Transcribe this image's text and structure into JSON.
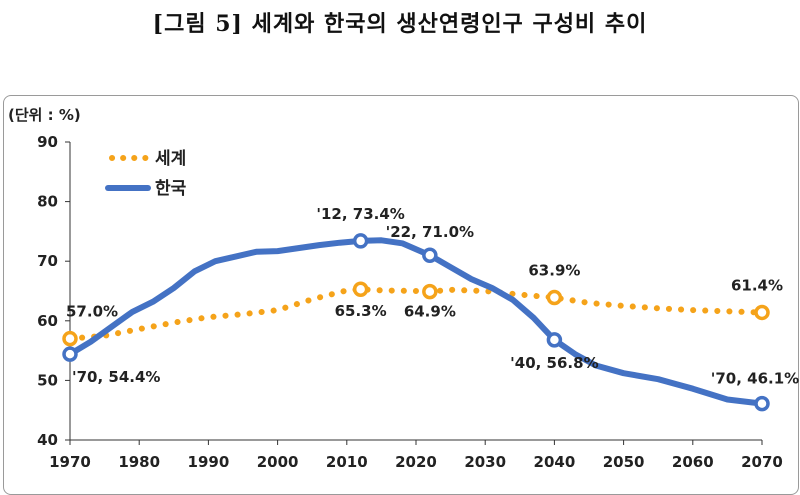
{
  "figure": {
    "title": "[그림 5] 세계와 한국의 생산연령인구 구성비 추이",
    "unit_label": "(단위 : %)"
  },
  "colors": {
    "world": "#F5A31A",
    "korea": "#4472C4"
  },
  "chart_data": {
    "type": "line",
    "title": "[그림 5] 세계와 한국의 생산연령인구 구성비 추이",
    "ylabel": "(단위 : %)",
    "ylim": [
      40,
      90
    ],
    "yticks": [
      "40",
      "50",
      "60",
      "70",
      "80",
      "90"
    ],
    "xlim": [
      1970,
      2070
    ],
    "xticks": [
      "1970",
      "1980",
      "1990",
      "2000",
      "2010",
      "2020",
      "2030",
      "2040",
      "2050",
      "2060",
      "2070"
    ],
    "grid": false,
    "legend": "top-left",
    "series": [
      {
        "name": "세계",
        "style": "dotted",
        "x": [
          1970,
          1975,
          1980,
          1985,
          1990,
          1995,
          2000,
          2005,
          2010,
          2012,
          2015,
          2020,
          2022,
          2025,
          2030,
          2035,
          2040,
          2045,
          2050,
          2055,
          2060,
          2065,
          2070
        ],
        "y": [
          57.0,
          57.5,
          58.6,
          59.7,
          60.6,
          61.1,
          61.8,
          63.6,
          65.1,
          65.3,
          65.1,
          65.0,
          64.9,
          65.2,
          65.0,
          64.4,
          63.9,
          63.0,
          62.5,
          62.1,
          61.8,
          61.6,
          61.4
        ],
        "markers": [
          {
            "x": 1970,
            "y": 57.0,
            "label": "57.0%"
          },
          {
            "x": 2012,
            "y": 65.3,
            "label": "65.3%"
          },
          {
            "x": 2022,
            "y": 64.9,
            "label": "64.9%"
          },
          {
            "x": 2040,
            "y": 63.9,
            "label": "63.9%"
          },
          {
            "x": 2070,
            "y": 61.4,
            "label": "61.4%"
          }
        ]
      },
      {
        "name": "한국",
        "style": "solid",
        "x": [
          1970,
          1973,
          1976,
          1979,
          1982,
          1985,
          1988,
          1991,
          1994,
          1997,
          2000,
          2003,
          2006,
          2009,
          2012,
          2015,
          2018,
          2022,
          2025,
          2028,
          2031,
          2034,
          2037,
          2040,
          2043,
          2046,
          2050,
          2055,
          2060,
          2065,
          2070
        ],
        "y": [
          54.4,
          56.5,
          59.0,
          61.5,
          63.2,
          65.5,
          68.3,
          70.0,
          70.8,
          71.6,
          71.7,
          72.2,
          72.7,
          73.1,
          73.4,
          73.5,
          73.0,
          71.0,
          69.0,
          67.0,
          65.5,
          63.5,
          60.5,
          56.8,
          54.4,
          52.5,
          51.2,
          50.2,
          48.6,
          46.8,
          46.1
        ],
        "markers": [
          {
            "x": 1970,
            "y": 54.4,
            "label": "'70, 54.4%"
          },
          {
            "x": 2012,
            "y": 73.4,
            "label": "'12, 73.4%"
          },
          {
            "x": 2022,
            "y": 71.0,
            "label": "'22, 71.0%"
          },
          {
            "x": 2040,
            "y": 56.8,
            "label": "'40, 56.8%"
          },
          {
            "x": 2070,
            "y": 46.1,
            "label": "'70, 46.1%"
          }
        ]
      }
    ]
  }
}
